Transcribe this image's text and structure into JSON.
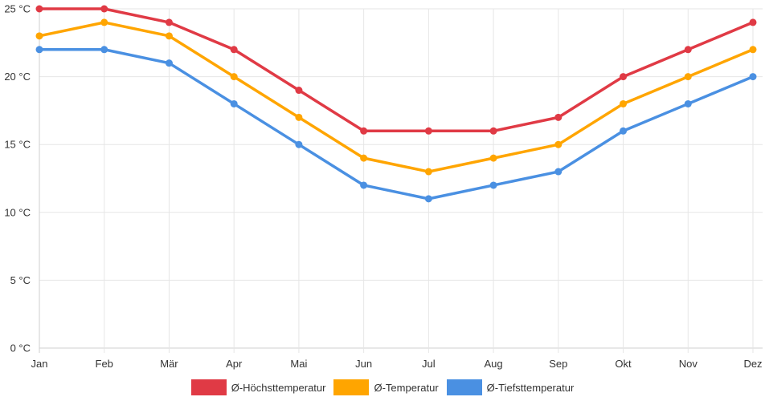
{
  "chart_data": {
    "type": "line",
    "title": "",
    "xlabel": "",
    "ylabel": "",
    "categories": [
      "Jan",
      "Feb",
      "Mär",
      "Apr",
      "Mai",
      "Jun",
      "Jul",
      "Aug",
      "Sep",
      "Okt",
      "Nov",
      "Dez"
    ],
    "ylim": [
      0,
      25
    ],
    "yticks": [
      0,
      5,
      10,
      15,
      20,
      25
    ],
    "ytick_labels": [
      "0 °C",
      "5 °C",
      "10 °C",
      "15 °C",
      "20 °C",
      "25 °C"
    ],
    "grid": true,
    "legend_position": "bottom-center",
    "series": [
      {
        "name": "Ø-Höchsttemperatur",
        "color": "#e03a45",
        "values": [
          25,
          25,
          24,
          22,
          19,
          16,
          16,
          16,
          17,
          20,
          22,
          24
        ]
      },
      {
        "name": "Ø-Temperatur",
        "color": "#ffa500",
        "values": [
          23,
          24,
          23,
          20,
          17,
          14,
          13,
          14,
          15,
          18,
          20,
          22
        ]
      },
      {
        "name": "Ø-Tiefsttemperatur",
        "color": "#4a90e2",
        "values": [
          22,
          22,
          21,
          18,
          15,
          12,
          11,
          12,
          13,
          16,
          18,
          20
        ]
      }
    ]
  }
}
